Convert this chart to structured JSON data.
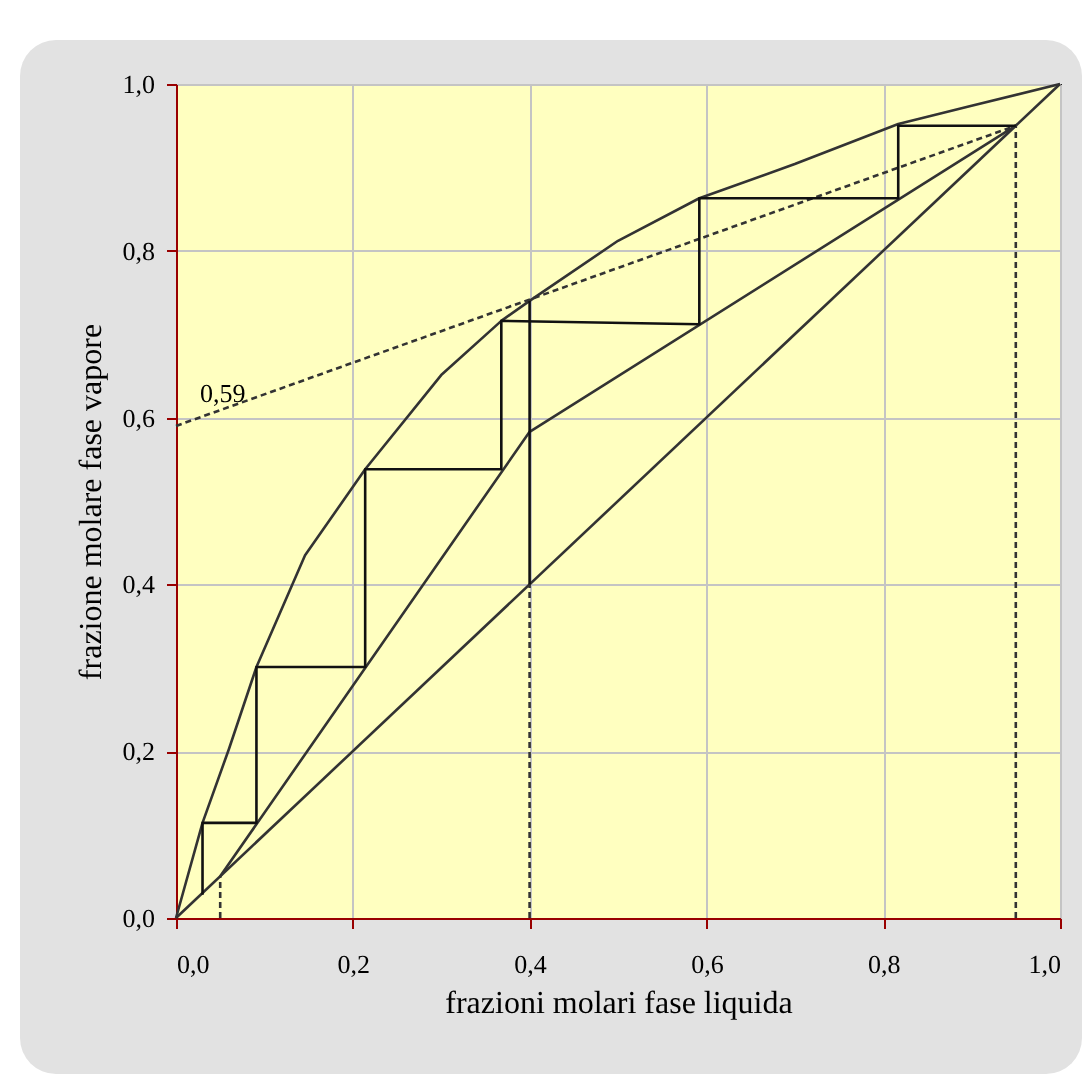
{
  "chart_data": {
    "type": "line",
    "xlabel": "frazioni molari  fase liquida",
    "ylabel": "frazione molare  fase vapore",
    "xlim": [
      0,
      1
    ],
    "ylim": [
      0,
      1
    ],
    "xticks": [
      {
        "value": 0,
        "label": "0,0"
      },
      {
        "value": 0.2,
        "label": "0,2"
      },
      {
        "value": 0.4,
        "label": "0,4"
      },
      {
        "value": 0.6,
        "label": "0,6"
      },
      {
        "value": 0.8,
        "label": "0,8"
      },
      {
        "value": 1,
        "label": "1,0"
      }
    ],
    "yticks": [
      {
        "value": 0,
        "label": "0,0"
      },
      {
        "value": 0.2,
        "label": "0,2"
      },
      {
        "value": 0.4,
        "label": "0,4"
      },
      {
        "value": 0.6,
        "label": "0,6"
      },
      {
        "value": 0.8,
        "label": "0,8"
      },
      {
        "value": 1,
        "label": "1,0"
      }
    ],
    "grid": true,
    "annotations": [
      {
        "text": "0,59",
        "x": 0,
        "y": 0.59
      }
    ],
    "series": [
      {
        "color": "#333333",
        "x": [
          0,
          1
        ],
        "values": [
          0,
          1
        ]
      },
      {
        "color": "#333333",
        "x": [
          0,
          0.03,
          0.06,
          0.091,
          0.146,
          0.214,
          0.3,
          0.368,
          0.4,
          0.5,
          0.592,
          0.7,
          0.817,
          0.9,
          1
        ],
        "values": [
          0,
          0.114,
          0.203,
          0.301,
          0.435,
          0.538,
          0.651,
          0.716,
          0.74,
          0.812,
          0.863,
          0.904,
          0.952,
          0.974,
          1
        ]
      },
      {
        "color": "#333333",
        "x": [
          0.05,
          0.4,
          0.95
        ],
        "values": [
          0.05,
          0.583,
          0.95
        ]
      },
      {
        "color": "#111111",
        "x": [
          0.4,
          0.4
        ],
        "values": [
          0.4,
          0.74
        ]
      },
      {
        "color": "#333333",
        "x": [
          0,
          0.95
        ],
        "values": [
          0.59,
          0.95
        ],
        "line_style": "dashed"
      },
      {
        "color": "#333333",
        "x": [
          0.05,
          0.05
        ],
        "values": [
          0,
          0.05
        ],
        "line_style": "dashed"
      },
      {
        "color": "#333333",
        "x": [
          0.4,
          0.4
        ],
        "values": [
          0,
          0.4
        ],
        "line_style": "dashed"
      },
      {
        "color": "#333333",
        "x": [
          0.95,
          0.95
        ],
        "values": [
          0,
          0.95
        ],
        "line_style": "dashed"
      },
      {
        "color": "#111111",
        "x": [
          0.95,
          0.817,
          0.817,
          0.592,
          0.592,
          0.368,
          0.368,
          0.214,
          0.214,
          0.091,
          0.091,
          0.03,
          0.03
        ],
        "values": [
          0.95,
          0.95,
          0.863,
          0.863,
          0.712,
          0.716,
          0.538,
          0.538,
          0.301,
          0.301,
          0.114,
          0.114,
          0.028
        ]
      }
    ]
  }
}
